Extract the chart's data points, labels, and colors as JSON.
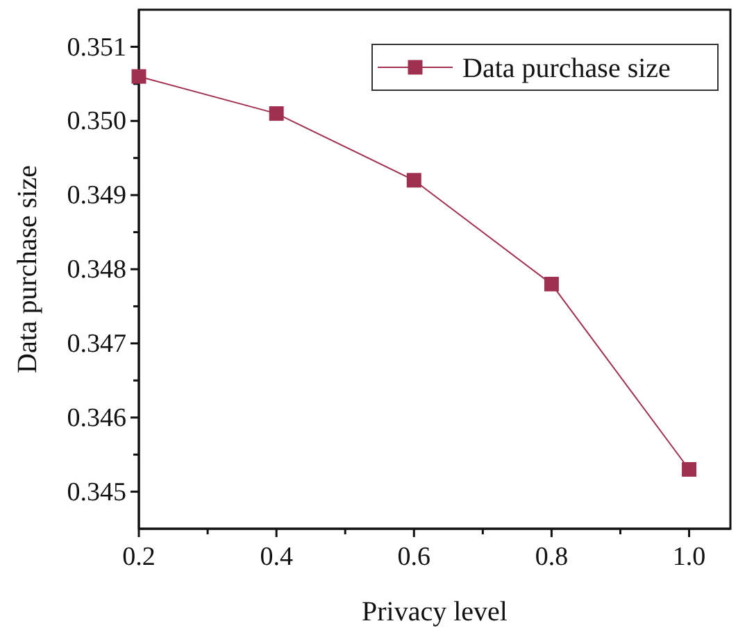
{
  "chart_data": {
    "type": "line",
    "xlabel": "Privacy level",
    "ylabel": "Data purchase size",
    "x": [
      0.2,
      0.4,
      0.6,
      0.8,
      1.0
    ],
    "series": [
      {
        "name": "Data purchase size",
        "color": "#a0304f",
        "values": [
          0.3506,
          0.3501,
          0.3492,
          0.3478,
          0.3453
        ]
      }
    ],
    "xlim": [
      0.2,
      1.06
    ],
    "ylim": [
      0.3445,
      0.3515
    ],
    "xticks": [
      0.2,
      {
        "value": 0.3,
        "label": null
      },
      0.4,
      {
        "value": 0.5,
        "label": null
      },
      0.6,
      {
        "value": 0.7,
        "label": null
      },
      0.8,
      {
        "value": 0.9,
        "label": null
      },
      {
        "value": 1.0,
        "label": "1.0"
      }
    ],
    "yticks": [
      0.345,
      {
        "value": 0.3455,
        "label": null
      },
      0.346,
      {
        "value": 0.3465,
        "label": null
      },
      0.347,
      {
        "value": 0.3475,
        "label": null
      },
      0.348,
      {
        "value": 0.3485,
        "label": null
      },
      0.349,
      {
        "value": 0.3495,
        "label": null
      },
      {
        "value": 0.35,
        "label": "0.350"
      },
      {
        "value": 0.3505,
        "label": null
      },
      0.351
    ],
    "marker": "square",
    "line_style": "solid",
    "legend": "top right",
    "grid": false
  }
}
